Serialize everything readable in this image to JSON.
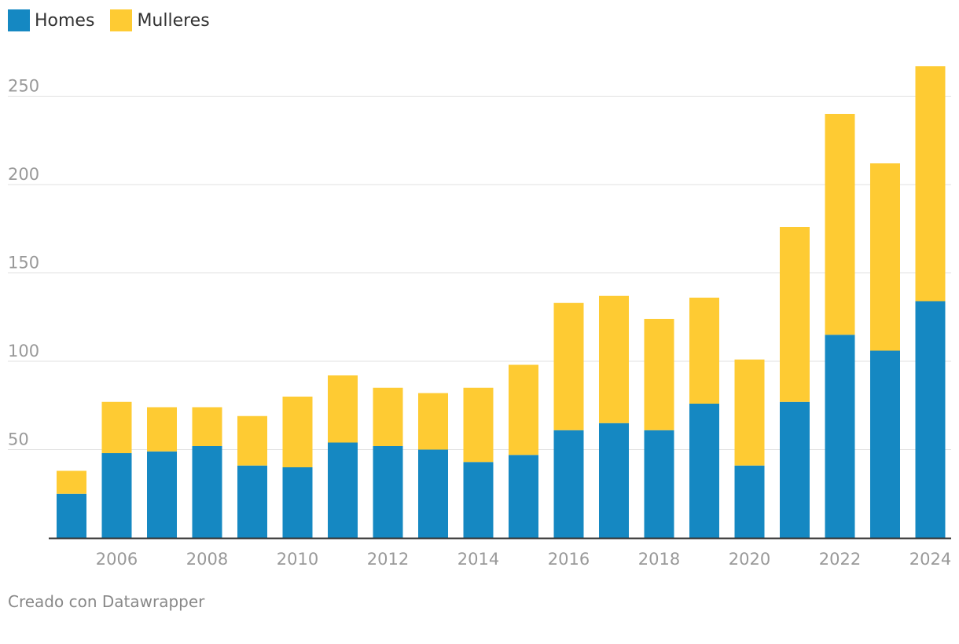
{
  "legend": {
    "men_label": "Homes",
    "women_label": "Mulleres"
  },
  "credit": "Creado con Datawrapper",
  "colors": {
    "men": "#1588c2",
    "women": "#fecb33",
    "grid": "#e0e0e0",
    "axis": "#333333",
    "tick_text": "#999999"
  },
  "chart_data": {
    "type": "bar",
    "stacked": true,
    "title": "",
    "xlabel": "",
    "ylabel": "",
    "ylim": [
      0,
      270
    ],
    "yticks": [
      50,
      100,
      150,
      200,
      250
    ],
    "xtick_labels": [
      "2006",
      "2008",
      "2010",
      "2012",
      "2014",
      "2016",
      "2018",
      "2020",
      "2022",
      "2024"
    ],
    "categories": [
      "2005",
      "2006",
      "2007",
      "2008",
      "2009",
      "2010",
      "2011",
      "2012",
      "2013",
      "2014",
      "2015",
      "2016",
      "2017",
      "2018",
      "2019",
      "2020",
      "2021",
      "2022",
      "2023",
      "2024"
    ],
    "series": [
      {
        "name": "Homes",
        "values": [
          25,
          48,
          49,
          52,
          41,
          40,
          54,
          52,
          50,
          43,
          47,
          61,
          65,
          61,
          76,
          41,
          77,
          115,
          106,
          134
        ]
      },
      {
        "name": "Mulleres",
        "values": [
          13,
          29,
          25,
          22,
          28,
          40,
          38,
          33,
          32,
          42,
          51,
          72,
          72,
          63,
          60,
          60,
          99,
          125,
          106,
          133
        ]
      }
    ],
    "legend_position": "top-left",
    "grid": true
  }
}
